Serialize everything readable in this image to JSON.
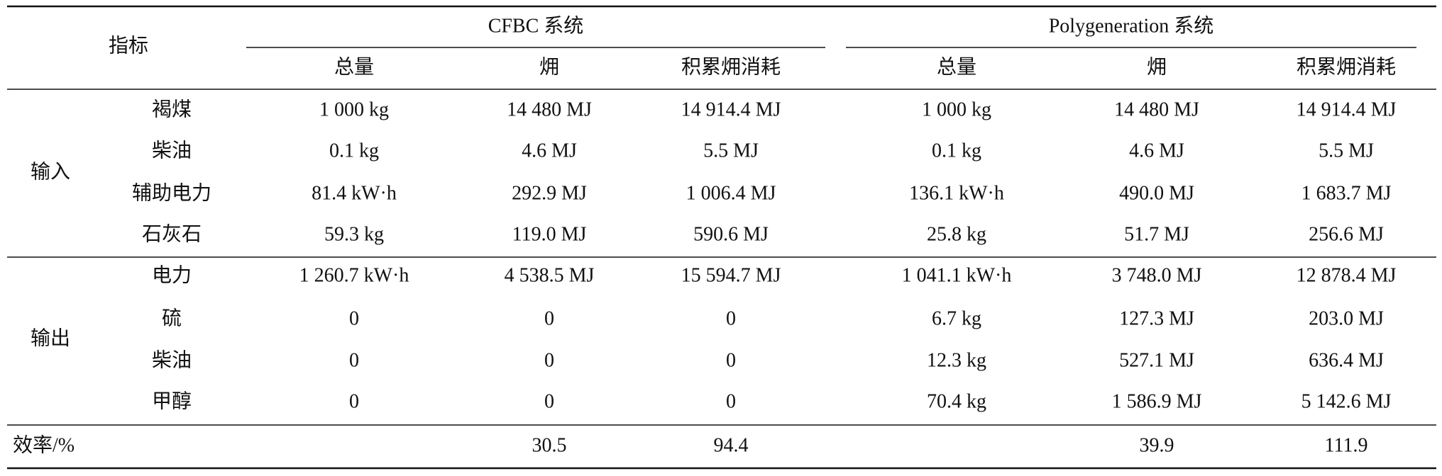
{
  "header": {
    "index_label": "指标",
    "groups": [
      {
        "title": "CFBC 系统",
        "columns": [
          "总量",
          "㶲",
          "积累㶲消耗"
        ]
      },
      {
        "title": "Polygeneration 系统",
        "columns": [
          "总量",
          "㶲",
          "积累㶲消耗"
        ]
      }
    ]
  },
  "sections": [
    {
      "label": "输入",
      "rows": [
        {
          "name": "褐煤",
          "cells": [
            "1 000 kg",
            "14 480 MJ",
            "14 914.4 MJ",
            "1 000 kg",
            "14 480 MJ",
            "14 914.4 MJ"
          ]
        },
        {
          "name": "柴油",
          "cells": [
            "0.1 kg",
            "4.6 MJ",
            "5.5 MJ",
            "0.1 kg",
            "4.6 MJ",
            "5.5 MJ"
          ]
        },
        {
          "name": "辅助电力",
          "cells": [
            "81.4 kW·h",
            "292.9 MJ",
            "1 006.4 MJ",
            "136.1 kW·h",
            "490.0 MJ",
            "1 683.7 MJ"
          ]
        },
        {
          "name": "石灰石",
          "cells": [
            "59.3 kg",
            "119.0 MJ",
            "590.6 MJ",
            "25.8 kg",
            "51.7 MJ",
            "256.6 MJ"
          ]
        }
      ]
    },
    {
      "label": "输出",
      "rows": [
        {
          "name": "电力",
          "cells": [
            "1 260.7 kW·h",
            "4 538.5 MJ",
            "15 594.7 MJ",
            "1 041.1 kW·h",
            "3 748.0 MJ",
            "12 878.4 MJ"
          ]
        },
        {
          "name": "硫",
          "cells": [
            "0",
            "0",
            "0",
            "6.7 kg",
            "127.3 MJ",
            "203.0 MJ"
          ]
        },
        {
          "name": "柴油",
          "cells": [
            "0",
            "0",
            "0",
            "12.3 kg",
            "527.1 MJ",
            "636.4 MJ"
          ]
        },
        {
          "name": "甲醇",
          "cells": [
            "0",
            "0",
            "0",
            "70.4 kg",
            "1 586.9 MJ",
            "5 142.6 MJ"
          ]
        }
      ]
    }
  ],
  "footer": {
    "label": "效率/%",
    "cells": [
      null,
      "30.5",
      "94.4",
      null,
      "39.9",
      "111.9"
    ]
  }
}
